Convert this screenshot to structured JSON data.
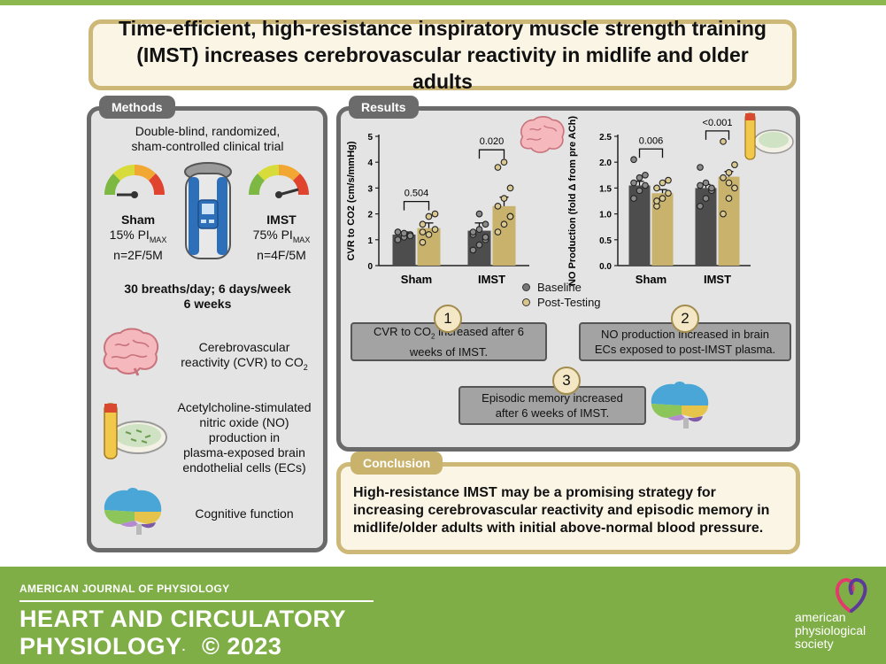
{
  "title": {
    "line1": "Time-efficient, high-resistance inspiratory muscle strength training",
    "line2": "(IMST) increases cerebrovascular reactivity in midlife and older adults"
  },
  "methods": {
    "tab": "Methods",
    "trial_line1": "Double-blind, randomized,",
    "trial_line2": "sham-controlled clinical trial",
    "sham": {
      "name": "Sham",
      "pct": "15% PI",
      "sub": "MAX",
      "n": "n=2F/5M"
    },
    "imst": {
      "name": "IMST",
      "pct": "75% PI",
      "sub": "MAX",
      "n": "n=4F/5M"
    },
    "protocol_line1": "30 breaths/day; 6 days/week",
    "protocol_line2": "6 weeks",
    "outcome1_line1": "Cerebrovascular",
    "outcome1_line2": "reactivity (CVR) to CO",
    "outcome1_sub": "2",
    "outcome2_lines": [
      "Acetylcholine-stimulated",
      "nitric oxide (NO)",
      "production in",
      "plasma-exposed brain",
      "endothelial cells (ECs)"
    ],
    "outcome3": "Cognitive function"
  },
  "results": {
    "tab": "Results",
    "box1_line1": "CVR to CO",
    "box1_sub": "2",
    "box1_rest": " increased after 6",
    "box1_line2": "weeks of IMST.",
    "box2_line1": "NO production increased in brain",
    "box2_line2": "ECs exposed to post-IMST plasma.",
    "box3_line1": "Episodic memory increased",
    "box3_line2": "after 6 weeks of IMST.",
    "num1": "1",
    "num2": "2",
    "num3": "3",
    "legend": [
      "Baseline",
      "Post-Testing"
    ]
  },
  "conclusion": {
    "tab": "Conclusion",
    "line1": "High-resistance IMST may be a promising strategy for",
    "line2": "increasing cerebrovascular reactivity and episodic memory in",
    "line3": "midlife/older adults with initial above-normal blood pressure."
  },
  "footer": {
    "journal_small": "AMERICAN JOURNAL OF PHYSIOLOGY",
    "journal_line1": "HEART AND CIRCULATORY",
    "journal_line2": "PHYSIOLOGY",
    "copyright": "© 2023",
    "society": [
      "american",
      "physiological",
      "society"
    ]
  },
  "colors": {
    "baseline": "#4d4d4d",
    "post": "#c9b26b",
    "green": "#7fae47",
    "gold_border": "#cdb877"
  },
  "chart_data": [
    {
      "type": "bar",
      "ylabel": "CVR to CO2 (cm/s/mmHg)",
      "categories": [
        "Sham",
        "IMST"
      ],
      "ylim": [
        0,
        5
      ],
      "yticks": [
        "0",
        "1",
        "2",
        "3",
        "4",
        "5"
      ],
      "series": [
        {
          "name": "Baseline",
          "values": [
            1.2,
            1.35
          ],
          "errors": [
            0.1,
            0.3
          ],
          "points": [
            [
              1.0,
              1.1,
              1.2,
              1.3,
              1.25,
              1.15,
              1.3
            ],
            [
              0.6,
              0.8,
              1.0,
              1.2,
              1.4,
              1.6,
              1.3,
              2.0,
              1.1
            ]
          ]
        },
        {
          "name": "Post-Testing",
          "values": [
            1.45,
            2.3
          ],
          "errors": [
            0.2,
            0.35
          ],
          "points": [
            [
              0.9,
              1.2,
              1.4,
              1.6,
              1.9,
              2.0,
              1.3
            ],
            [
              1.3,
              1.6,
              1.9,
              2.3,
              2.6,
              3.0,
              3.8,
              4.0,
              1.9
            ]
          ]
        }
      ],
      "annotations": [
        "0.504",
        "0.020"
      ]
    },
    {
      "type": "bar",
      "ylabel": "NO Production (fold Δ from pre ACh)",
      "categories": [
        "Sham",
        "IMST"
      ],
      "ylim": [
        0,
        2.5
      ],
      "yticks": [
        "0.0",
        "0.5",
        "1.0",
        "1.5",
        "2.0",
        "2.5"
      ],
      "series": [
        {
          "name": "Baseline",
          "values": [
            1.55,
            1.5
          ],
          "errors": [
            0.08,
            0.07
          ],
          "points": [
            [
              1.3,
              1.45,
              1.55,
              1.6,
              1.7,
              1.75,
              2.05
            ],
            [
              1.15,
              1.3,
              1.45,
              1.55,
              1.6,
              1.5,
              1.9
            ]
          ]
        },
        {
          "name": "Post-Testing",
          "values": [
            1.4,
            1.72
          ],
          "errors": [
            0.07,
            0.1
          ],
          "points": [
            [
              1.15,
              1.3,
              1.4,
              1.5,
              1.6,
              1.65,
              1.25
            ],
            [
              1.0,
              1.3,
              1.5,
              1.7,
              1.8,
              1.95,
              2.4,
              1.6
            ]
          ]
        }
      ],
      "annotations": [
        "0.006",
        "<0.001"
      ]
    }
  ]
}
